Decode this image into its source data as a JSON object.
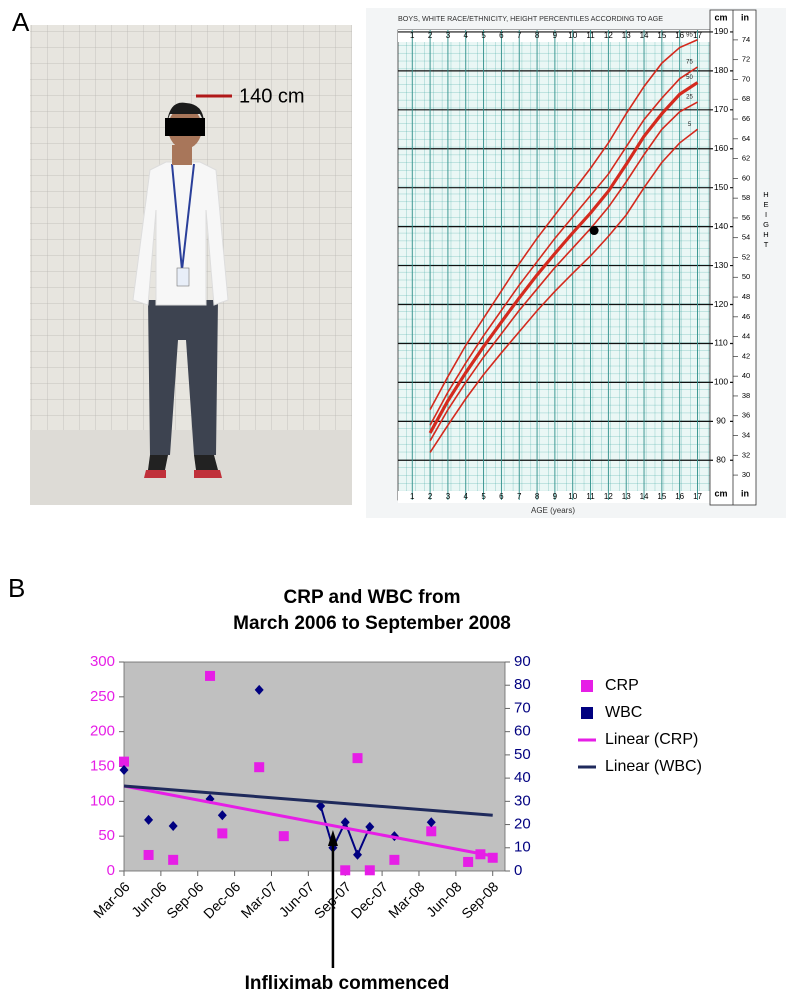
{
  "panel_labels": [
    "A",
    "B"
  ],
  "photo": {
    "annotation": "140 cm"
  },
  "chart_data": [
    {
      "type": "line",
      "title": "BOYS, WHITE RACE/ETHNICITY, HEIGHT PERCENTILES ACCORDING TO AGE",
      "x_label": "AGE (years)",
      "y_label": "HEIGHT",
      "y_unit": "cm",
      "y2_unit": "in",
      "xlim": [
        0.2,
        17.7
      ],
      "xticks": [
        1,
        2,
        3,
        4,
        5,
        6,
        7,
        8,
        9,
        10,
        11,
        12,
        13,
        14,
        15,
        16,
        17
      ],
      "ylim": [
        69.8,
        190.5
      ],
      "yticks": [
        80,
        90,
        100,
        110,
        120,
        130,
        140,
        150,
        160,
        170,
        180,
        190
      ],
      "y2lim": [
        27.48,
        75
      ],
      "y2ticks": [
        30,
        32,
        34,
        36,
        38,
        40,
        42,
        44,
        46,
        48,
        50,
        52,
        54,
        56,
        58,
        60,
        62,
        64,
        66,
        68,
        70,
        72,
        74
      ],
      "series": [
        {
          "name": "95",
          "color": "#d42a1e",
          "line_width": 1.6,
          "x": [
            2,
            3,
            4,
            5,
            6,
            7,
            8,
            9,
            10,
            11,
            12,
            13,
            14,
            15,
            16,
            17
          ],
          "values": [
            93,
            101.5,
            109.5,
            116.5,
            123.5,
            130.5,
            137,
            143,
            149,
            155,
            161.5,
            169,
            176,
            182,
            186,
            188
          ]
        },
        {
          "name": "75",
          "color": "#d42a1e",
          "line_width": 1.6,
          "x": [
            2,
            3,
            4,
            5,
            6,
            7,
            8,
            9,
            10,
            11,
            12,
            13,
            14,
            15,
            16,
            17
          ],
          "values": [
            89,
            97.5,
            105,
            112,
            118.5,
            125,
            131,
            137,
            142.5,
            148,
            153.5,
            160.5,
            167.5,
            173,
            178,
            181
          ]
        },
        {
          "name": "50",
          "color": "#d42a1e",
          "line_width": 3.2,
          "x": [
            2,
            3,
            4,
            5,
            6,
            7,
            8,
            9,
            10,
            11,
            12,
            13,
            14,
            15,
            16,
            17
          ],
          "values": [
            87,
            95.3,
            102.5,
            109.2,
            115.5,
            121.7,
            127.6,
            133.1,
            138.4,
            143.5,
            149.1,
            156,
            163.2,
            169,
            174,
            177
          ]
        },
        {
          "name": "25",
          "color": "#d42a1e",
          "line_width": 1.6,
          "x": [
            2,
            3,
            4,
            5,
            6,
            7,
            8,
            9,
            10,
            11,
            12,
            13,
            14,
            15,
            16,
            17
          ],
          "values": [
            85,
            93,
            100,
            106.5,
            112.5,
            118.5,
            124,
            129.5,
            134.5,
            139.5,
            145,
            151.5,
            158.5,
            165,
            169.5,
            172
          ]
        },
        {
          "name": "5",
          "color": "#d42a1e",
          "line_width": 1.6,
          "x": [
            2,
            3,
            4,
            5,
            6,
            7,
            8,
            9,
            10,
            11,
            12,
            13,
            14,
            15,
            16,
            17
          ],
          "values": [
            82,
            89,
            95.8,
            102,
            107.6,
            113,
            118.4,
            123.4,
            128,
            132.5,
            137.5,
            143,
            150,
            156.5,
            161.5,
            165
          ]
        }
      ],
      "point": {
        "x": 11.2,
        "value": 139,
        "color": "#000000"
      }
    },
    {
      "type": "scatter",
      "title": [
        "CRP and WBC from",
        "March 2006 to September 2008"
      ],
      "xlim": [
        "2006-03",
        "2008-10"
      ],
      "xticks": [
        {
          "value": "2006-03",
          "label": "Mar-06"
        },
        {
          "value": "2006-06",
          "label": "Jun-06"
        },
        {
          "value": "2006-09",
          "label": "Sep-06"
        },
        {
          "value": "2006-12",
          "label": "Dec-06"
        },
        {
          "value": "2007-03",
          "label": "Mar-07"
        },
        {
          "value": "2007-06",
          "label": "Jun-07"
        },
        {
          "value": "2007-09",
          "label": "Sep-07"
        },
        {
          "value": "2007-12",
          "label": "Dec-07"
        },
        {
          "value": "2008-03",
          "label": "Mar-08"
        },
        {
          "value": "2008-06",
          "label": "Jun-08"
        },
        {
          "value": "2008-09",
          "label": "Sep-08"
        }
      ],
      "ylim": [
        0,
        300
      ],
      "yticks": [
        0,
        50,
        100,
        150,
        200,
        250,
        300
      ],
      "y_color": "#e61ee6",
      "y2lim": [
        0,
        90
      ],
      "y2ticks": [
        0,
        10,
        20,
        30,
        40,
        50,
        60,
        70,
        80,
        90
      ],
      "y2_color": "#000080",
      "background": "#c0c0c0",
      "series": [
        {
          "name": "CRP",
          "color": "#e61ee6",
          "marker": "square",
          "x": [
            "2006-03",
            "2006-05",
            "2006-07",
            "2006-10",
            "2006-11",
            "2007-02",
            "2007-04",
            "2007-09",
            "2007-10",
            "2007-11",
            "2008-01",
            "2008-04",
            "2008-07",
            "2008-08",
            "2008-09"
          ],
          "values": [
            157,
            23,
            16,
            280,
            54,
            149,
            50,
            1,
            162,
            1,
            16,
            57,
            13,
            24,
            19
          ]
        },
        {
          "name": "WBC",
          "color": "#000080",
          "marker": "diamond",
          "axis": "y2",
          "x": [
            "2006-03",
            "2006-05",
            "2006-07",
            "2006-10",
            "2006-11",
            "2007-02",
            "2007-07",
            "2007-08",
            "2007-09",
            "2007-10",
            "2007-11",
            "2008-01",
            "2008-04"
          ],
          "values": [
            43.5,
            22,
            19.4,
            31,
            24,
            78,
            28,
            10,
            21,
            7,
            19,
            15,
            21
          ]
        },
        {
          "name": "Linear (CRP)",
          "color": "#e61ee6",
          "marker": "line",
          "x": [
            "2006-03",
            "2008-09"
          ],
          "values": [
            122,
            21.5
          ]
        },
        {
          "name": "Linear (WBC)",
          "color": "#1f2a5c",
          "marker": "line",
          "axis": "y2",
          "x": [
            "2006-03",
            "2008-09"
          ],
          "values": [
            36.6,
            24
          ]
        }
      ],
      "annotation": {
        "text": "Infliximab commenced",
        "x": "2007-08"
      }
    }
  ]
}
